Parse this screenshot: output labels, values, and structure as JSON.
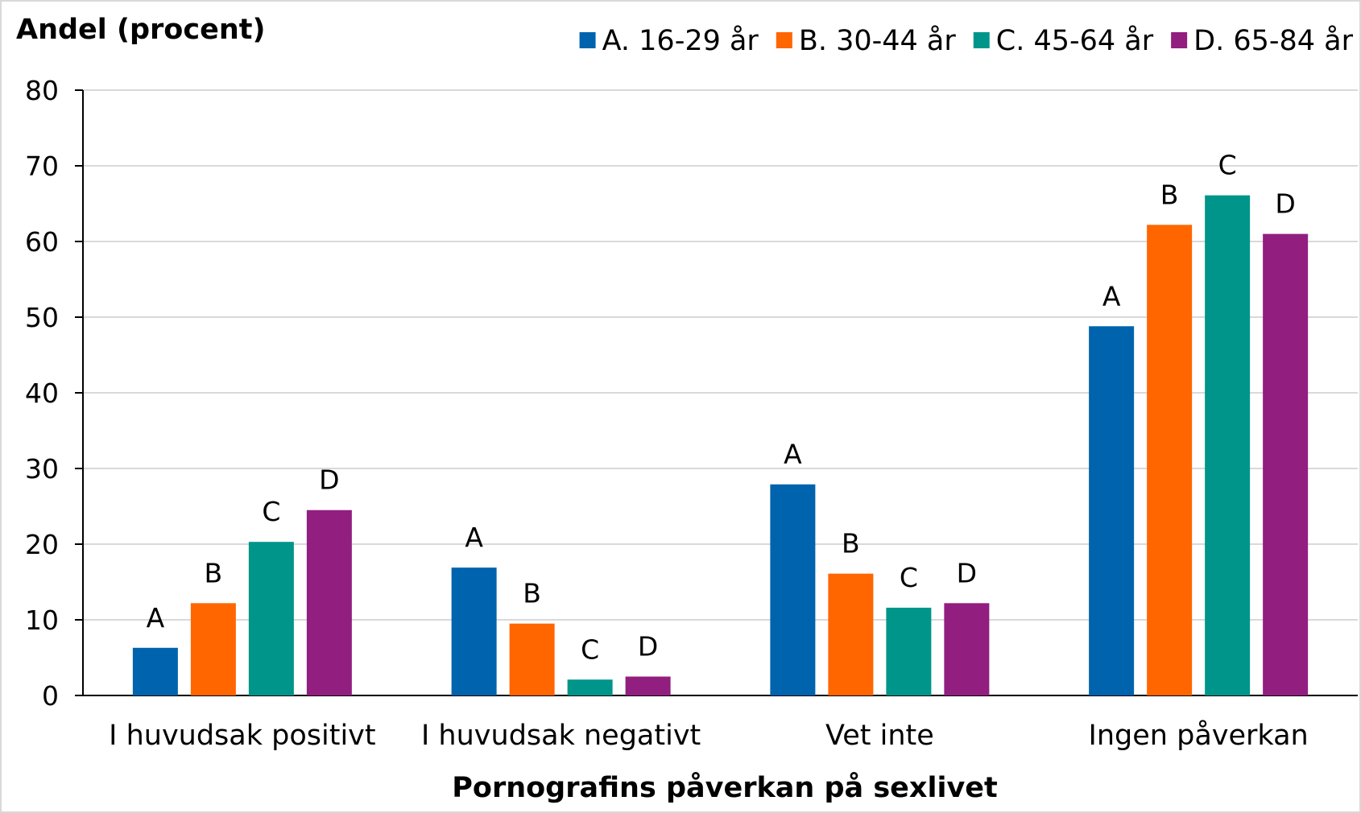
{
  "chart_data": {
    "type": "bar",
    "ylabel": "Andel (procent)",
    "xlabel": "Pornografins påverkan på sexlivet",
    "ylim": [
      0,
      80
    ],
    "yticks": [
      0,
      10,
      20,
      30,
      40,
      50,
      60,
      70,
      80
    ],
    "grid": true,
    "legend_position": "top-right",
    "categories": [
      "I huvudsak positivt",
      "I huvudsak negativt",
      "Vet inte",
      "Ingen påverkan"
    ],
    "series": [
      {
        "name": "A. 16-29 år",
        "bar_label": "A",
        "color": "#0063ad",
        "values": [
          6.3,
          16.9,
          27.9,
          48.8
        ]
      },
      {
        "name": "B. 30-44 år",
        "bar_label": "B",
        "color": "#ff6600",
        "values": [
          12.2,
          9.5,
          16.1,
          62.2
        ]
      },
      {
        "name": "C. 45-64 år",
        "bar_label": "C",
        "color": "#00958a",
        "values": [
          20.3,
          2.1,
          11.6,
          66.1
        ]
      },
      {
        "name": "D. 65-84 år",
        "bar_label": "D",
        "color": "#921e80",
        "values": [
          24.5,
          2.5,
          12.2,
          61.0
        ]
      }
    ]
  }
}
